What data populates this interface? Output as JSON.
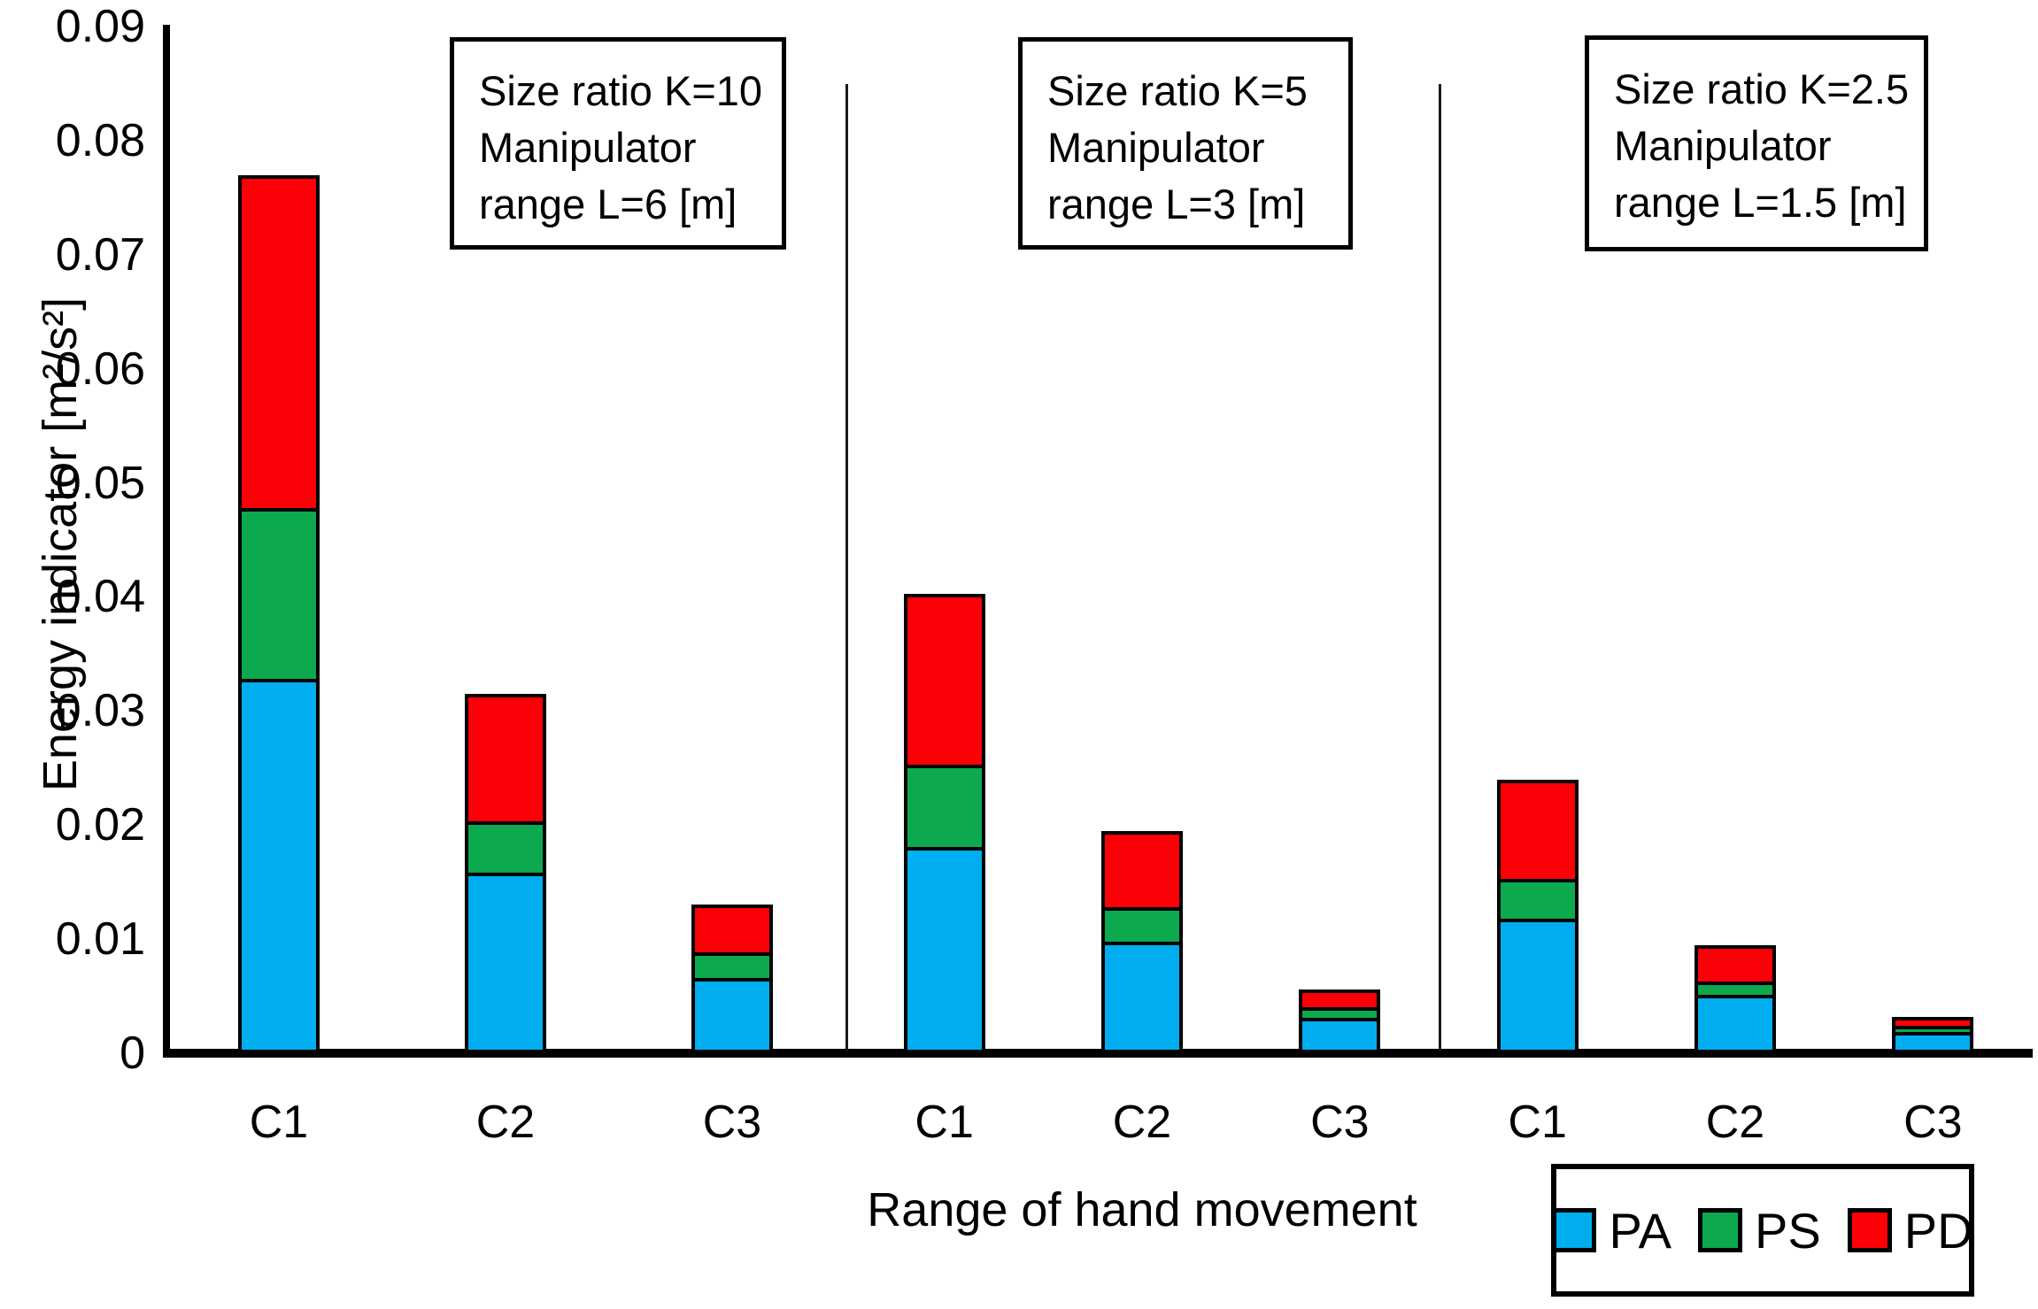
{
  "y_axis": {
    "title": "Energy indicator [m²/s²]"
  },
  "x_axis": {
    "title": "Range of hand movement"
  },
  "annotations": [
    {
      "lines": [
        "Size ratio K=10",
        "Manipulator",
        "range L=6 [m]"
      ]
    },
    {
      "lines": [
        "Size ratio K=5",
        "Manipulator",
        "range L=3 [m]"
      ]
    },
    {
      "lines": [
        "Size ratio K=2.5",
        "Manipulator",
        "range L=1.5 [m]"
      ]
    }
  ],
  "legend": {
    "items": [
      {
        "label": "PA",
        "color": "#00AEEF"
      },
      {
        "label": "PS",
        "color": "#0CA94F"
      },
      {
        "label": "PD",
        "color": "#FB0006"
      }
    ]
  },
  "chart_data": {
    "type": "bar",
    "stacked": true,
    "title": "",
    "xlabel": "Range of hand movement",
    "ylabel": "Energy indicator [m²/s²]",
    "ylim": [
      0,
      0.09
    ],
    "yticks": [
      0,
      0.01,
      0.02,
      0.03,
      0.04,
      0.05,
      0.06,
      0.07,
      0.08,
      0.09
    ],
    "grid": false,
    "legend_position": "bottom-right",
    "groups": [
      {
        "annotation": "Size ratio K=10 Manipulator range L=6 [m]",
        "categories": [
          "C1",
          "C2",
          "C3"
        ]
      },
      {
        "annotation": "Size ratio K=5 Manipulator range L=3 [m]",
        "categories": [
          "C1",
          "C2",
          "C3"
        ]
      },
      {
        "annotation": "Size ratio K=2.5 Manipulator range L=1.5 [m]",
        "categories": [
          "C1",
          "C2",
          "C3"
        ]
      }
    ],
    "categories": [
      "C1",
      "C2",
      "C3",
      "C1",
      "C2",
      "C3",
      "C1",
      "C2",
      "C3"
    ],
    "series": [
      {
        "name": "PA",
        "color": "#00AEEF",
        "values": [
          0.0325,
          0.0155,
          0.0063,
          0.0178,
          0.0095,
          0.0028,
          0.0115,
          0.0048,
          0.0016
        ]
      },
      {
        "name": "PS",
        "color": "#0CA94F",
        "values": [
          0.015,
          0.0045,
          0.0022,
          0.0072,
          0.003,
          0.0009,
          0.0035,
          0.0012,
          0.0005
        ]
      },
      {
        "name": "PD",
        "color": "#FB0006",
        "values": [
          0.0295,
          0.0115,
          0.0045,
          0.0153,
          0.007,
          0.0019,
          0.009,
          0.0035,
          0.0011
        ]
      }
    ],
    "bar_totals": [
      0.077,
      0.0315,
      0.013,
      0.0403,
      0.0195,
      0.0056,
      0.024,
      0.0095,
      0.0032
    ]
  }
}
